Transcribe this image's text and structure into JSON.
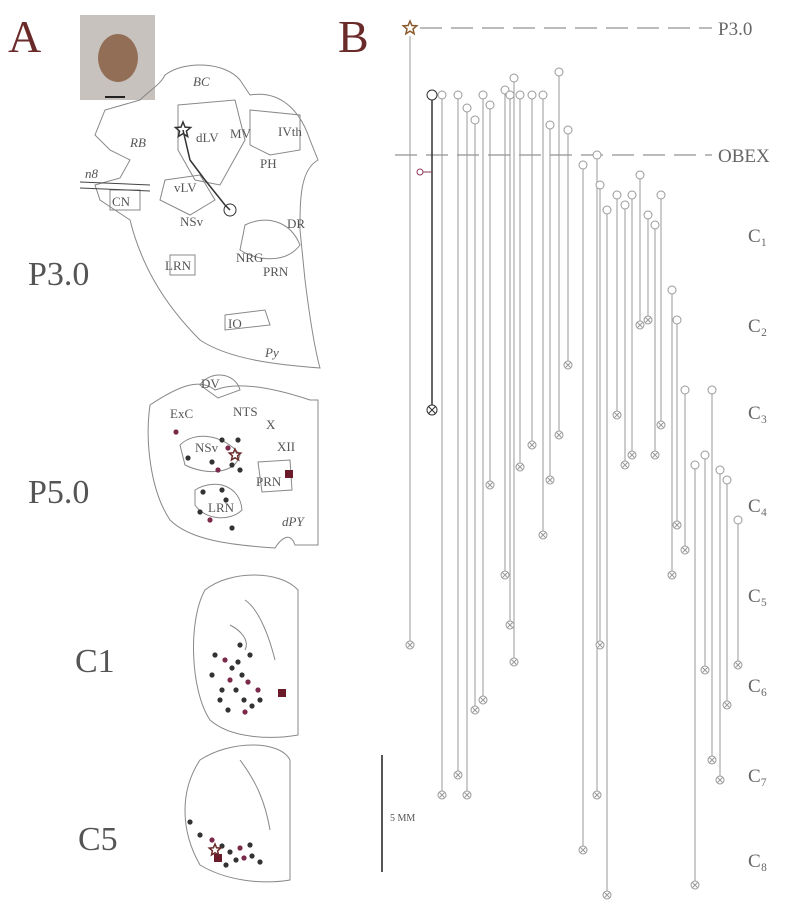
{
  "panel_a": {
    "label": "A",
    "section_p3": {
      "label": "P3.0",
      "regions": [
        "BC",
        "RB",
        "dLV",
        "MV",
        "IVth",
        "PH",
        "n8",
        "CN",
        "vLV",
        "NSv",
        "DR",
        "LRN",
        "NRG",
        "PRN",
        "IO",
        "Py"
      ]
    },
    "section_p5": {
      "label": "P5.0",
      "regions": [
        "DV",
        "ExC",
        "NTS",
        "X",
        "XII",
        "NSv",
        "PRN",
        "LRN",
        "dPY"
      ]
    },
    "section_c1": {
      "label": "C1"
    },
    "section_c5": {
      "label": "C5"
    }
  },
  "panel_b": {
    "label": "B",
    "levels": [
      "P3.0",
      "OBEX",
      "C₁",
      "C₂",
      "C₃",
      "C₄",
      "C₅",
      "C₆",
      "C₇",
      "C₈"
    ],
    "scale_bar": "5 MM"
  }
}
